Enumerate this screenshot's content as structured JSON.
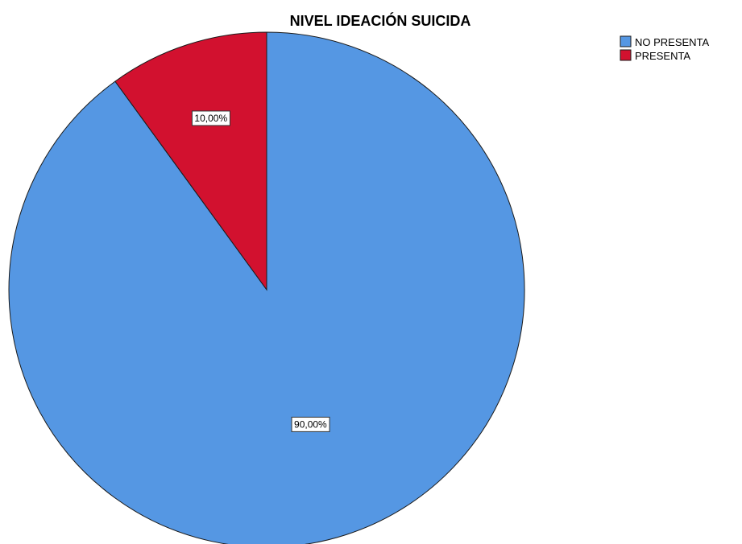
{
  "chart_data": {
    "type": "pie",
    "title": "NIVEL IDEACIÓN SUICIDA",
    "categories": [
      "NO PRESENTA",
      "PRESENTA"
    ],
    "values": [
      90,
      10
    ],
    "data_labels": [
      "90,00%",
      "10,00%"
    ],
    "colors": [
      "#5597e3",
      "#d2112f"
    ],
    "legend_position": "top-right"
  }
}
